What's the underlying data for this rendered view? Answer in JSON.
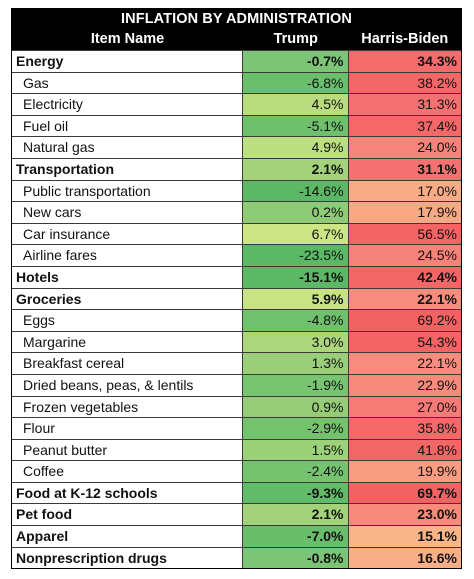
{
  "table": {
    "title": "INFLATION BY ADMINISTRATION",
    "headers": {
      "item": "Item Name",
      "trump": "Trump",
      "biden": "Harris-Biden"
    },
    "rows": [
      {
        "name": "Energy",
        "bold": true,
        "trump": "-0.7%",
        "biden": "34.3%",
        "trump_color": "#7cc576",
        "biden_color": "#f46b6b"
      },
      {
        "name": "Gas",
        "bold": false,
        "trump": "-6.8%",
        "biden": "38.2%",
        "trump_color": "#6abf6a",
        "biden_color": "#f46767"
      },
      {
        "name": "Electricity",
        "bold": false,
        "trump": "4.5%",
        "biden": "31.3%",
        "trump_color": "#b9dd7e",
        "biden_color": "#f47171"
      },
      {
        "name": "Fuel oil",
        "bold": false,
        "trump": "-5.1%",
        "biden": "37.4%",
        "trump_color": "#6ec06c",
        "biden_color": "#f46868"
      },
      {
        "name": "Natural gas",
        "bold": false,
        "trump": "4.9%",
        "biden": "24.0%",
        "trump_color": "#bcdf7f",
        "biden_color": "#f6847a"
      },
      {
        "name": "Transportation",
        "bold": true,
        "trump": "2.1%",
        "biden": "31.1%",
        "trump_color": "#a3d27a",
        "biden_color": "#f47171"
      },
      {
        "name": "Public transportation",
        "bold": false,
        "trump": "-14.6%",
        "biden": "17.0%",
        "trump_color": "#5cb865",
        "biden_color": "#f8ac86"
      },
      {
        "name": "New cars",
        "bold": false,
        "trump": "0.2%",
        "biden": "17.9%",
        "trump_color": "#8fca76",
        "biden_color": "#f8a885"
      },
      {
        "name": "Car insurance",
        "bold": false,
        "trump": "6.7%",
        "biden": "56.5%",
        "trump_color": "#cde585",
        "biden_color": "#f36464"
      },
      {
        "name": "Airline fares",
        "bold": false,
        "trump": "-23.5%",
        "biden": "24.5%",
        "trump_color": "#5bb865",
        "biden_color": "#f68379"
      },
      {
        "name": "Hotels",
        "bold": true,
        "trump": "-15.1%",
        "biden": "42.4%",
        "trump_color": "#5cb865",
        "biden_color": "#f36666"
      },
      {
        "name": "Groceries",
        "bold": true,
        "trump": "5.9%",
        "biden": "22.1%",
        "trump_color": "#c8e383",
        "biden_color": "#f78d7c"
      },
      {
        "name": "Eggs",
        "bold": false,
        "trump": "-4.8%",
        "biden": "69.2%",
        "trump_color": "#70c16d",
        "biden_color": "#f36262"
      },
      {
        "name": "Margarine",
        "bold": false,
        "trump": "3.0%",
        "biden": "54.3%",
        "trump_color": "#abd67b",
        "biden_color": "#f36464"
      },
      {
        "name": "Breakfast cereal",
        "bold": false,
        "trump": "1.3%",
        "biden": "22.1%",
        "trump_color": "#9ace78",
        "biden_color": "#f78d7c"
      },
      {
        "name": "Dried beans, peas, & lentils",
        "bold": false,
        "trump": "-1.9%",
        "biden": "22.9%",
        "trump_color": "#78c470",
        "biden_color": "#f68a7b"
      },
      {
        "name": "Frozen vegetables",
        "bold": false,
        "trump": "0.9%",
        "biden": "27.0%",
        "trump_color": "#96cc77",
        "biden_color": "#f57b76"
      },
      {
        "name": "Flour",
        "bold": false,
        "trump": "-2.9%",
        "biden": "35.8%",
        "trump_color": "#74c26e",
        "biden_color": "#f46969"
      },
      {
        "name": "Peanut butter",
        "bold": false,
        "trump": "1.5%",
        "biden": "41.8%",
        "trump_color": "#9cd079",
        "biden_color": "#f36666"
      },
      {
        "name": "Coffee",
        "bold": false,
        "trump": "-2.4%",
        "biden": "19.9%",
        "trump_color": "#76c36f",
        "biden_color": "#f89c82"
      },
      {
        "name": "Food at K-12 schools",
        "bold": true,
        "trump": "-9.3%",
        "biden": "69.7%",
        "trump_color": "#62bb68",
        "biden_color": "#f36262"
      },
      {
        "name": "Pet food",
        "bold": true,
        "trump": "2.1%",
        "biden": "23.0%",
        "trump_color": "#a3d27a",
        "biden_color": "#f68a7b"
      },
      {
        "name": "Apparel",
        "bold": true,
        "trump": "-7.0%",
        "biden": "15.1%",
        "trump_color": "#68be6a",
        "biden_color": "#f9b588"
      },
      {
        "name": "Nonprescription drugs",
        "bold": true,
        "trump": "-0.8%",
        "biden": "16.6%",
        "trump_color": "#7cc576",
        "biden_color": "#f8ae87"
      }
    ]
  }
}
